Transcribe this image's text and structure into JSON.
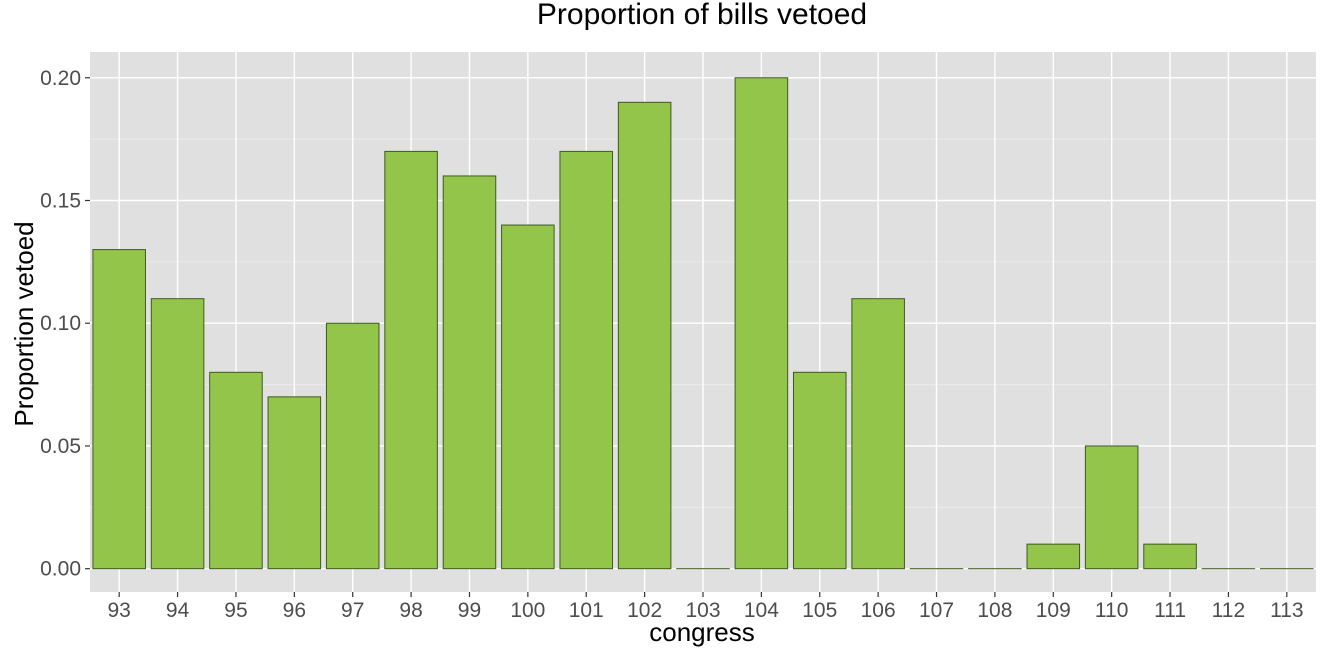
{
  "chart_data": {
    "type": "bar",
    "title": "Proportion of bills vetoed",
    "xlabel": "congress",
    "ylabel": "Proportion vetoed",
    "categories": [
      "93",
      "94",
      "95",
      "96",
      "97",
      "98",
      "99",
      "100",
      "101",
      "102",
      "103",
      "104",
      "105",
      "106",
      "107",
      "108",
      "109",
      "110",
      "111",
      "112",
      "113"
    ],
    "values": [
      0.13,
      0.11,
      0.08,
      0.07,
      0.1,
      0.17,
      0.16,
      0.14,
      0.17,
      0.19,
      0.0,
      0.2,
      0.08,
      0.11,
      0.0,
      0.0,
      0.01,
      0.05,
      0.01,
      0.0,
      0.0
    ],
    "ylim": [
      -0.0095,
      0.2105
    ],
    "yticks": [
      "0.00",
      "0.05",
      "0.10",
      "0.15",
      "0.20"
    ],
    "grid": true,
    "legend": "none",
    "colors": {
      "bar_fill": "#93c54b",
      "bar_stroke": "#3f5a1f",
      "panel_bg": "#e0e0e0",
      "grid_major": "#ffffff",
      "grid_minor": "#ebebeb"
    }
  }
}
